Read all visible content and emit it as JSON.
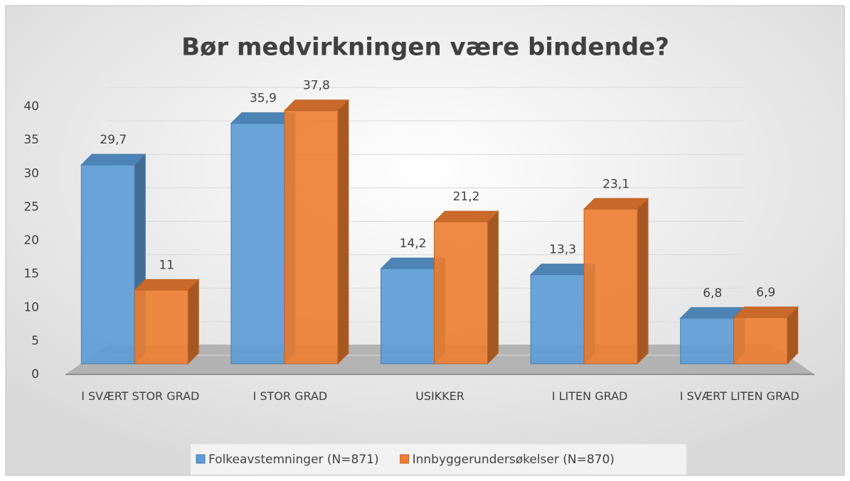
{
  "chart_data": {
    "type": "bar3d",
    "title": "Bør medvirkningen være bindende?",
    "categories": [
      "I SVÆRT STOR GRAD",
      "I STOR GRAD",
      "USIKKER",
      "I LITEN GRAD",
      "I SVÆRT LITEN GRAD"
    ],
    "series": [
      {
        "name": "Folkeavstemninger (N=871)",
        "color": "#5b9bd5",
        "values": [
          29.7,
          35.9,
          14.2,
          13.3,
          6.8
        ],
        "value_labels": [
          "29,7",
          "35,9",
          "14,2",
          "13,3",
          "6,8"
        ]
      },
      {
        "name": "Innbyggerundersøkelser (N=870)",
        "color": "#ed7d31",
        "values": [
          11,
          37.8,
          21.2,
          23.1,
          6.9
        ],
        "value_labels": [
          "11",
          "37,8",
          "21,2",
          "23,1",
          "6,9"
        ]
      }
    ],
    "ylim": [
      0,
      40
    ],
    "yticks": [
      0,
      5,
      10,
      15,
      20,
      25,
      30,
      35,
      40
    ],
    "grid": true,
    "legend": "bottom"
  }
}
